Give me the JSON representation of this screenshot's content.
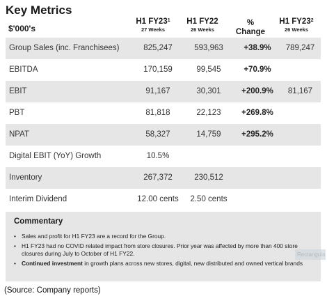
{
  "title": "Key Metrics",
  "units": "$'000's",
  "columns": [
    {
      "main": "H1 FY23",
      "sup": "1",
      "sub": "27 Weeks"
    },
    {
      "main": "H1 FY22",
      "sup": "",
      "sub": "26 Weeks"
    },
    {
      "main": "%",
      "sup": "",
      "sub": "Change"
    },
    {
      "main": "H1 FY23",
      "sup": "2",
      "sub": "26 Weeks"
    }
  ],
  "rows": [
    {
      "label": "Group Sales (inc. Franchisees)",
      "v1": "825,247",
      "v2": "593,963",
      "change": "+38.9%",
      "v4": "789,247"
    },
    {
      "label": "EBITDA",
      "v1": "170,159",
      "v2": "99,545",
      "change": "+70.9%",
      "v4": ""
    },
    {
      "label": "EBIT",
      "v1": "91,167",
      "v2": "30,301",
      "change": "+200.9%",
      "v4": "81,167"
    },
    {
      "label": "PBT",
      "v1": "81,818",
      "v2": "22,123",
      "change": "+269.8%",
      "v4": ""
    },
    {
      "label": "NPAT",
      "v1": "58,327",
      "v2": "14,759",
      "change": "+295.2%",
      "v4": ""
    },
    {
      "label": "Digital EBIT (YoY) Growth",
      "v1": "10.5%",
      "v2": "",
      "change": "",
      "v4": ""
    },
    {
      "label": "Inventory",
      "v1": "267,372",
      "v2": "230,512",
      "change": "",
      "v4": ""
    },
    {
      "label": "Interim Dividend",
      "v1": "12.00 cents",
      "v2": "2.50 cents",
      "change": "",
      "v4": ""
    }
  ],
  "commentary": {
    "heading": "Commentary",
    "bullets": [
      {
        "bold": "",
        "text": "Sales and profit for H1 FY23 are a record for the Group."
      },
      {
        "bold": "",
        "text": "H1 FY23 had no COVID related impact from store closures. Prior year was affected by more than 400 store closures during July to October of H1 FY22."
      },
      {
        "bold": "Continued investment",
        "text": " in growth plans across new stores, digital, new distributed and owned vertical brands"
      }
    ]
  },
  "watermark": "Rectangula",
  "source": "(Source: Company reports)"
}
